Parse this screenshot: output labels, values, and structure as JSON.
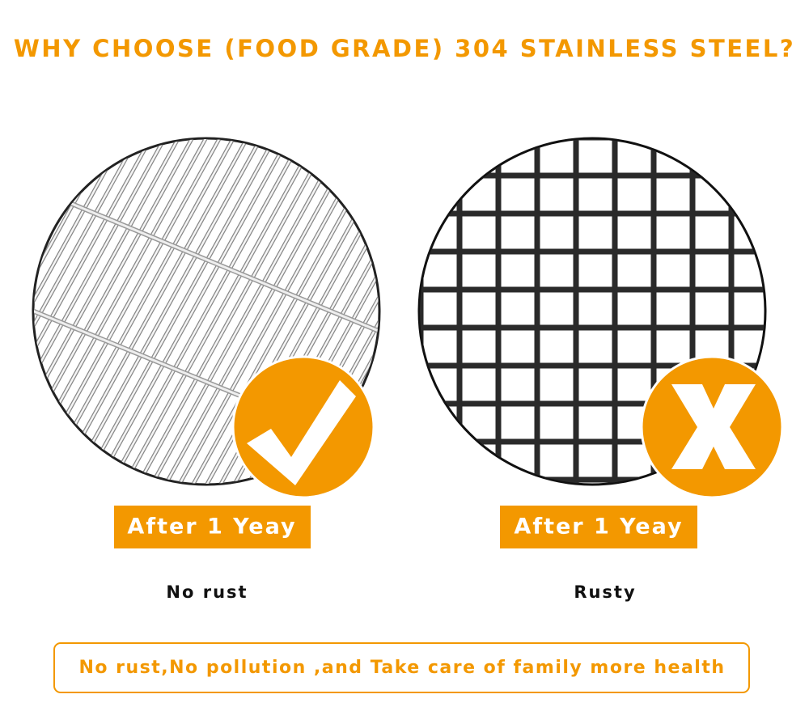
{
  "header": {
    "title": "WHY CHOOSE (FOOD GRADE) 304 STAINLESS STEEL?"
  },
  "panels": [
    {
      "badge": "After 1 Yeay",
      "caption": "No rust"
    },
    {
      "badge": "After 1 Yeay",
      "caption": "Rusty"
    }
  ],
  "footer": {
    "text": "No rust,No pollution ,and Take care of family more health"
  }
}
